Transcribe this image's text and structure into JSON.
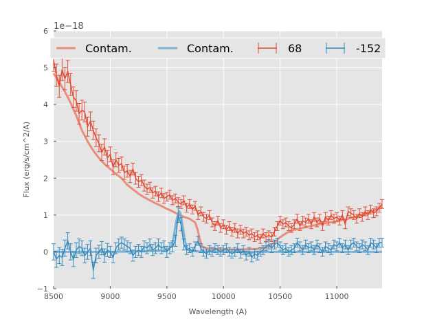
{
  "chart_data": {
    "type": "line",
    "title": "",
    "xlabel": "Wavelength (A)",
    "ylabel": "Flux (erg/s/cm^2/A)",
    "y_offset_label": "1e−18",
    "xlim": [
      8500,
      11400
    ],
    "ylim": [
      -1,
      6
    ],
    "x_ticks": [
      8500,
      9000,
      9500,
      10000,
      10500,
      11000
    ],
    "y_ticks": [
      -1,
      0,
      1,
      2,
      3,
      4,
      5,
      6
    ],
    "y_tick_labels": [
      "−1",
      "0",
      "1",
      "2",
      "3",
      "4",
      "5",
      "6"
    ],
    "grid": true,
    "legend_position": "top",
    "colors": {
      "red": "#e24a33",
      "red_light": "#e8846f",
      "blue": "#348abd",
      "blue_light": "#76acd2",
      "background": "#e5e5e5",
      "grid": "#ffffff"
    },
    "series": [
      {
        "name": "Contam.",
        "kind": "line",
        "color": "red_light",
        "x": [
          8500,
          8550,
          8600,
          8650,
          8700,
          8750,
          8800,
          8850,
          8900,
          8950,
          9000,
          9050,
          9100,
          9150,
          9200,
          9250,
          9300,
          9350,
          9400,
          9450,
          9500,
          9550,
          9600,
          9650,
          9700,
          9750,
          9770,
          9790,
          9810,
          9850,
          9900,
          10000,
          10100,
          10200,
          10300,
          10400,
          10450,
          10500,
          10550,
          10600,
          10700,
          10800,
          10900,
          11000,
          11100,
          11200,
          11300,
          11400
        ],
        "values": [
          4.85,
          4.6,
          4.35,
          4.05,
          3.7,
          3.3,
          3.0,
          2.75,
          2.55,
          2.38,
          2.25,
          2.12,
          2.0,
          1.82,
          1.7,
          1.58,
          1.48,
          1.4,
          1.32,
          1.25,
          1.17,
          1.1,
          1.02,
          0.95,
          0.9,
          0.8,
          0.62,
          0.35,
          0.15,
          0.1,
          0.08,
          0.07,
          0.06,
          0.07,
          0.08,
          0.14,
          0.26,
          0.4,
          0.5,
          0.58,
          0.65,
          0.72,
          0.78,
          0.83,
          0.9,
          0.98,
          1.08,
          1.22
        ]
      },
      {
        "name": "Contam.",
        "kind": "line",
        "color": "blue_light",
        "x": [
          8500,
          8700,
          9000,
          9200,
          9400,
          9500,
          9540,
          9560,
          9580,
          9600,
          9610,
          9620,
          9640,
          9660,
          9680,
          9700,
          9800,
          10000,
          10500,
          11000,
          11400
        ],
        "values": [
          0.0,
          0.0,
          0.0,
          0.01,
          0.02,
          0.04,
          0.15,
          0.4,
          0.8,
          1.05,
          1.1,
          1.05,
          0.7,
          0.3,
          0.08,
          0.02,
          0.01,
          0.0,
          0.0,
          0.0,
          0.0
        ]
      },
      {
        "name": "68",
        "kind": "errorbar",
        "color": "red",
        "x": [
          8500,
          8525,
          8550,
          8575,
          8600,
          8625,
          8650,
          8675,
          8700,
          8725,
          8750,
          8775,
          8800,
          8825,
          8850,
          8875,
          8900,
          8925,
          8950,
          8975,
          9000,
          9025,
          9050,
          9075,
          9100,
          9125,
          9150,
          9175,
          9200,
          9225,
          9250,
          9275,
          9300,
          9325,
          9350,
          9375,
          9400,
          9425,
          9450,
          9475,
          9500,
          9525,
          9550,
          9575,
          9600,
          9625,
          9650,
          9675,
          9700,
          9725,
          9750,
          9775,
          9800,
          9825,
          9850,
          9875,
          9900,
          9925,
          9950,
          9975,
          10000,
          10025,
          10050,
          10075,
          10100,
          10125,
          10150,
          10175,
          10200,
          10225,
          10250,
          10275,
          10300,
          10325,
          10350,
          10375,
          10400,
          10425,
          10450,
          10475,
          10500,
          10525,
          10550,
          10575,
          10600,
          10625,
          10650,
          10675,
          10700,
          10725,
          10750,
          10775,
          10800,
          10825,
          10850,
          10875,
          10900,
          10925,
          10950,
          10975,
          11000,
          11025,
          11050,
          11075,
          11100,
          11125,
          11150,
          11175,
          11200,
          11225,
          11250,
          11275,
          11300,
          11325,
          11350,
          11375,
          11400
        ],
        "values": [
          5.2,
          4.8,
          4.5,
          4.95,
          4.7,
          4.9,
          4.55,
          4.2,
          4.1,
          3.75,
          3.85,
          3.8,
          3.4,
          3.55,
          3.3,
          3.1,
          2.95,
          2.7,
          2.85,
          2.55,
          2.65,
          2.3,
          2.5,
          2.35,
          2.4,
          2.15,
          2.2,
          2.05,
          2.25,
          2.0,
          1.9,
          1.95,
          1.8,
          1.7,
          1.75,
          1.6,
          1.65,
          1.5,
          1.6,
          1.45,
          1.5,
          1.55,
          1.4,
          1.45,
          1.35,
          1.3,
          1.4,
          1.2,
          1.3,
          1.15,
          1.25,
          1.0,
          1.1,
          0.95,
          0.9,
          1.0,
          0.8,
          0.7,
          0.85,
          0.65,
          0.75,
          0.6,
          0.7,
          0.55,
          0.65,
          0.5,
          0.6,
          0.5,
          0.55,
          0.45,
          0.5,
          0.4,
          0.45,
          0.35,
          0.5,
          0.4,
          0.45,
          0.4,
          0.55,
          0.7,
          0.85,
          0.75,
          0.8,
          0.7,
          0.65,
          0.75,
          0.9,
          0.7,
          0.85,
          0.8,
          0.9,
          0.75,
          0.95,
          0.8,
          0.9,
          0.7,
          0.95,
          0.85,
          1.0,
          0.9,
          0.95,
          0.85,
          1.0,
          0.75,
          1.1,
          1.05,
          1.0,
          0.9,
          1.05,
          0.95,
          1.1,
          1.0,
          1.15,
          1.05,
          1.1,
          1.2,
          1.3
        ],
        "errors": [
          0.3,
          0.3,
          0.3,
          0.3,
          0.3,
          0.3,
          0.3,
          0.28,
          0.28,
          0.28,
          0.27,
          0.27,
          0.26,
          0.25,
          0.25,
          0.24,
          0.23,
          0.22,
          0.22,
          0.21,
          0.2,
          0.2,
          0.19,
          0.19,
          0.18,
          0.18,
          0.17,
          0.17,
          0.16,
          0.16,
          0.15,
          0.15,
          0.15,
          0.14,
          0.14,
          0.14,
          0.13,
          0.13,
          0.13,
          0.13,
          0.12,
          0.12,
          0.12,
          0.12,
          0.12,
          0.12,
          0.12,
          0.12,
          0.12,
          0.12,
          0.12,
          0.12,
          0.12,
          0.12,
          0.12,
          0.12,
          0.12,
          0.12,
          0.12,
          0.12,
          0.12,
          0.12,
          0.12,
          0.12,
          0.12,
          0.12,
          0.12,
          0.12,
          0.12,
          0.12,
          0.12,
          0.12,
          0.12,
          0.12,
          0.12,
          0.12,
          0.12,
          0.12,
          0.12,
          0.12,
          0.12,
          0.12,
          0.12,
          0.12,
          0.12,
          0.12,
          0.12,
          0.12,
          0.12,
          0.12,
          0.12,
          0.12,
          0.12,
          0.12,
          0.12,
          0.12,
          0.12,
          0.12,
          0.12,
          0.12,
          0.12,
          0.12,
          0.12,
          0.12,
          0.12,
          0.12,
          0.12,
          0.12,
          0.12,
          0.12,
          0.12,
          0.12,
          0.12,
          0.12,
          0.12,
          0.12,
          0.12
        ]
      },
      {
        "name": "-152",
        "kind": "errorbar",
        "color": "blue",
        "x": [
          8500,
          8525,
          8550,
          8575,
          8600,
          8625,
          8650,
          8675,
          8700,
          8725,
          8750,
          8775,
          8800,
          8825,
          8850,
          8875,
          8900,
          8925,
          8950,
          8975,
          9000,
          9025,
          9050,
          9075,
          9100,
          9125,
          9150,
          9175,
          9200,
          9225,
          9250,
          9275,
          9300,
          9325,
          9350,
          9375,
          9400,
          9425,
          9450,
          9475,
          9500,
          9525,
          9550,
          9575,
          9600,
          9625,
          9650,
          9675,
          9700,
          9725,
          9750,
          9775,
          9800,
          9825,
          9850,
          9875,
          9900,
          9925,
          9950,
          9975,
          10000,
          10025,
          10050,
          10075,
          10100,
          10125,
          10150,
          10175,
          10200,
          10225,
          10250,
          10275,
          10300,
          10325,
          10350,
          10375,
          10400,
          10425,
          10450,
          10475,
          10500,
          10525,
          10550,
          10575,
          10600,
          10625,
          10650,
          10675,
          10700,
          10725,
          10750,
          10775,
          10800,
          10825,
          10850,
          10875,
          10900,
          10925,
          10950,
          10975,
          11000,
          11025,
          11050,
          11075,
          11100,
          11125,
          11150,
          11175,
          11200,
          11225,
          11250,
          11275,
          11300,
          11325,
          11350,
          11375,
          11400
        ],
        "values": [
          0.0,
          -0.2,
          -0.1,
          -0.15,
          0.1,
          0.3,
          0.0,
          -0.2,
          0.05,
          0.15,
          0.1,
          -0.1,
          0.0,
          0.1,
          -0.5,
          -0.1,
          0.0,
          0.1,
          -0.1,
          0.05,
          0.0,
          -0.15,
          0.1,
          0.2,
          0.25,
          0.2,
          0.15,
          0.1,
          -0.1,
          0.0,
          0.05,
          0.0,
          0.15,
          0.1,
          0.2,
          0.05,
          0.1,
          0.2,
          0.1,
          0.15,
          0.0,
          0.1,
          0.15,
          0.3,
          1.0,
          0.75,
          0.2,
          0.05,
          0.1,
          0.0,
          0.15,
          0.3,
          0.1,
          0.0,
          -0.05,
          0.05,
          0.0,
          0.1,
          0.05,
          0.0,
          0.05,
          0.1,
          0.0,
          -0.05,
          0.0,
          0.1,
          -0.05,
          0.05,
          -0.1,
          0.0,
          -0.15,
          -0.05,
          -0.1,
          0.0,
          0.05,
          0.15,
          0.2,
          0.1,
          0.2,
          0.25,
          0.15,
          0.05,
          0.1,
          0.0,
          0.05,
          0.1,
          0.25,
          0.15,
          0.05,
          0.2,
          0.1,
          0.15,
          0.05,
          0.2,
          0.1,
          0.0,
          0.15,
          0.1,
          0.05,
          0.2,
          0.15,
          0.25,
          0.1,
          0.2,
          0.05,
          0.2,
          0.25,
          0.15,
          0.1,
          0.2,
          0.15,
          0.05,
          0.25,
          0.2,
          0.1,
          0.25,
          0.25
        ],
        "errors": [
          0.22,
          0.22,
          0.22,
          0.22,
          0.22,
          0.22,
          0.22,
          0.2,
          0.2,
          0.2,
          0.2,
          0.2,
          0.2,
          0.2,
          0.22,
          0.2,
          0.18,
          0.18,
          0.18,
          0.18,
          0.15,
          0.15,
          0.15,
          0.15,
          0.15,
          0.15,
          0.15,
          0.15,
          0.15,
          0.15,
          0.15,
          0.15,
          0.15,
          0.15,
          0.15,
          0.15,
          0.15,
          0.15,
          0.15,
          0.15,
          0.15,
          0.15,
          0.15,
          0.15,
          0.2,
          0.18,
          0.15,
          0.12,
          0.12,
          0.12,
          0.12,
          0.12,
          0.12,
          0.12,
          0.12,
          0.12,
          0.12,
          0.12,
          0.12,
          0.12,
          0.12,
          0.12,
          0.12,
          0.12,
          0.12,
          0.12,
          0.12,
          0.12,
          0.12,
          0.12,
          0.12,
          0.12,
          0.12,
          0.12,
          0.12,
          0.12,
          0.12,
          0.12,
          0.12,
          0.12,
          0.12,
          0.12,
          0.12,
          0.12,
          0.12,
          0.12,
          0.12,
          0.12,
          0.12,
          0.12,
          0.12,
          0.12,
          0.12,
          0.12,
          0.12,
          0.12,
          0.12,
          0.12,
          0.12,
          0.12,
          0.12,
          0.12,
          0.12,
          0.12,
          0.12,
          0.12,
          0.12,
          0.12,
          0.12,
          0.12,
          0.12,
          0.12,
          0.12,
          0.12,
          0.12,
          0.12,
          0.12
        ]
      }
    ]
  }
}
